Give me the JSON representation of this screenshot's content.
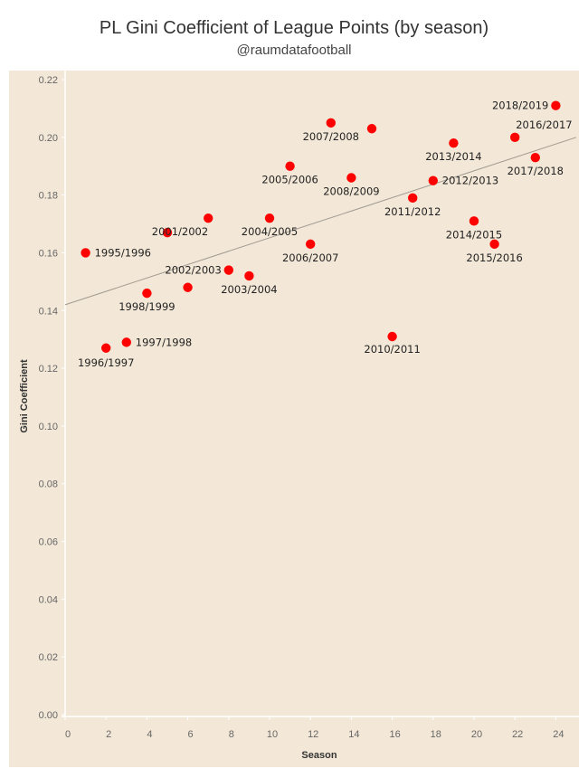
{
  "header": {
    "title": "PL Gini Coefficient of League Points  (by season)",
    "subtitle": "@raumdatafootball"
  },
  "colors": {
    "plot_background": "#f3e8d7",
    "point": "#ff0000",
    "trend_line": "#a09a90",
    "axis_line": "#ffffff"
  },
  "chart_data": {
    "type": "scatter",
    "title": "PL Gini Coefficient of League Points  (by season)",
    "subtitle": "@raumdatafootball",
    "xlabel": "Season",
    "ylabel": "Gini Coefficient",
    "xlim": [
      0,
      25
    ],
    "ylim": [
      0,
      0.22
    ],
    "x_ticks": [
      "0",
      "2",
      "4",
      "6",
      "8",
      "10",
      "12",
      "14",
      "16",
      "18",
      "20",
      "22",
      "24"
    ],
    "y_ticks": [
      "0.00",
      "0.02",
      "0.04",
      "0.06",
      "0.08",
      "0.10",
      "0.12",
      "0.14",
      "0.16",
      "0.18",
      "0.20",
      "0.22"
    ],
    "grid": false,
    "legend": "none",
    "points": [
      {
        "x": 1,
        "y": 0.16,
        "label": "1995/1996"
      },
      {
        "x": 2,
        "y": 0.127,
        "label": "1996/1997"
      },
      {
        "x": 3,
        "y": 0.129,
        "label": "1997/1998"
      },
      {
        "x": 4,
        "y": 0.146,
        "label": "1998/1999"
      },
      {
        "x": 5,
        "y": 0.167,
        "label": ""
      },
      {
        "x": 6,
        "y": 0.148,
        "label": ""
      },
      {
        "x": 7,
        "y": 0.172,
        "label": "2001/2002"
      },
      {
        "x": 8,
        "y": 0.154,
        "label": "2002/2003"
      },
      {
        "x": 9,
        "y": 0.152,
        "label": "2003/2004"
      },
      {
        "x": 10,
        "y": 0.172,
        "label": "2004/2005"
      },
      {
        "x": 11,
        "y": 0.19,
        "label": "2005/2006"
      },
      {
        "x": 12,
        "y": 0.163,
        "label": "2006/2007"
      },
      {
        "x": 13,
        "y": 0.205,
        "label": "2007/2008"
      },
      {
        "x": 14,
        "y": 0.186,
        "label": "2008/2009"
      },
      {
        "x": 15,
        "y": 0.203,
        "label": ""
      },
      {
        "x": 16,
        "y": 0.131,
        "label": "2010/2011"
      },
      {
        "x": 17,
        "y": 0.179,
        "label": "2011/2012"
      },
      {
        "x": 18,
        "y": 0.185,
        "label": "2012/2013"
      },
      {
        "x": 19,
        "y": 0.198,
        "label": "2013/2014"
      },
      {
        "x": 20,
        "y": 0.171,
        "label": "2014/2015"
      },
      {
        "x": 21,
        "y": 0.163,
        "label": "2015/2016"
      },
      {
        "x": 22,
        "y": 0.2,
        "label": "2016/2017"
      },
      {
        "x": 23,
        "y": 0.193,
        "label": "2017/2018"
      },
      {
        "x": 24,
        "y": 0.211,
        "label": "2018/2019"
      }
    ],
    "trend_line": {
      "type": "linear",
      "x0": 0,
      "y0": 0.142,
      "x1": 25,
      "y1": 0.2
    }
  }
}
